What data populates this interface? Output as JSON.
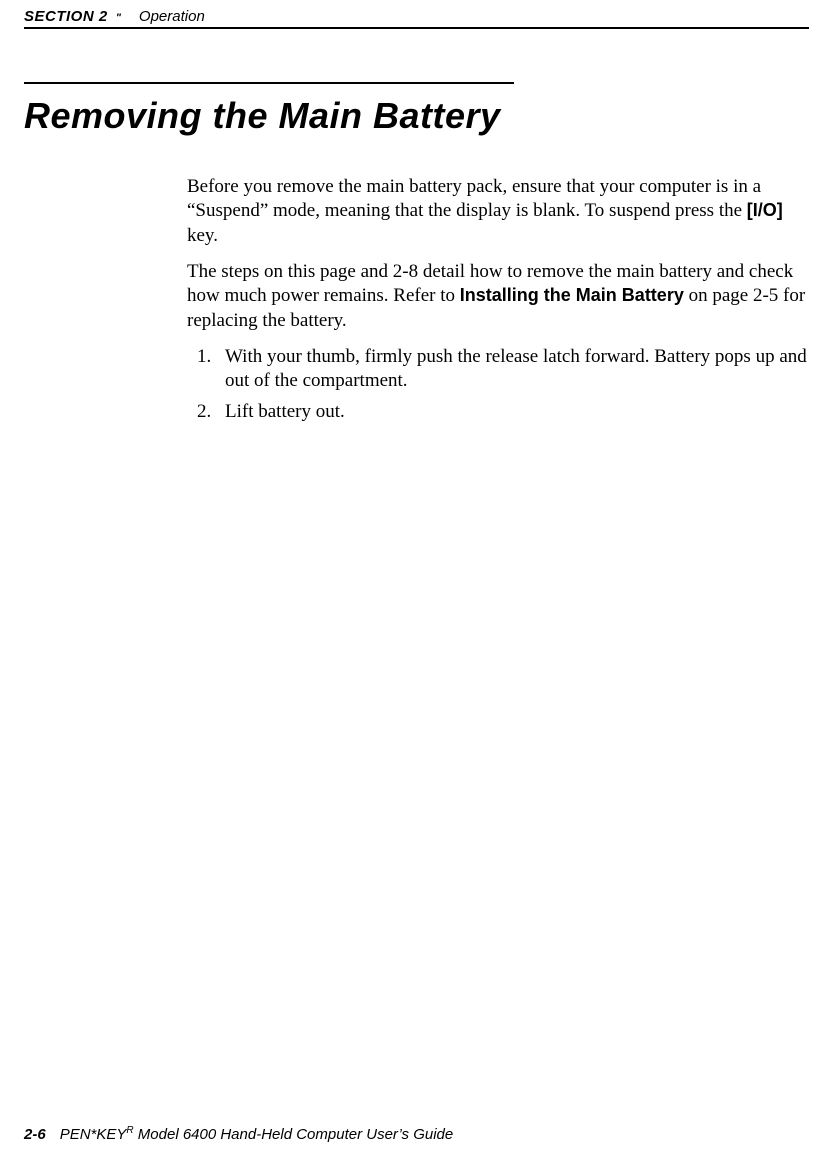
{
  "header": {
    "section_label": "SECTION 2",
    "section_quote": "\"",
    "section_name": "Operation"
  },
  "title": "Removing the Main Battery",
  "paragraphs": {
    "p1_a": "Before you remove the main battery pack, ensure that your computer is in a “Suspend” mode, meaning that the display is blank.  To suspend press the ",
    "p1_key": "[I/O]",
    "p1_b": " key.",
    "p2_a": "The steps on this page and 2-8 detail how to remove the main battery and check how much power remains.  Refer to ",
    "p2_link": "Installing the Main Battery",
    "p2_b": " on page 2-5 for replacing the battery."
  },
  "steps": {
    "s1_num": "1.",
    "s1_text": "With your thumb, firmly push the release latch for­ward.  Battery pops up and out of the compartment.",
    "s2_num": "2.",
    "s2_text": "Lift battery out."
  },
  "footer": {
    "page_num": "2-6",
    "product_a": "PEN*KEY",
    "product_sup": "R",
    "product_b": " Model 6400 Hand-Held Computer User’s Guide"
  }
}
